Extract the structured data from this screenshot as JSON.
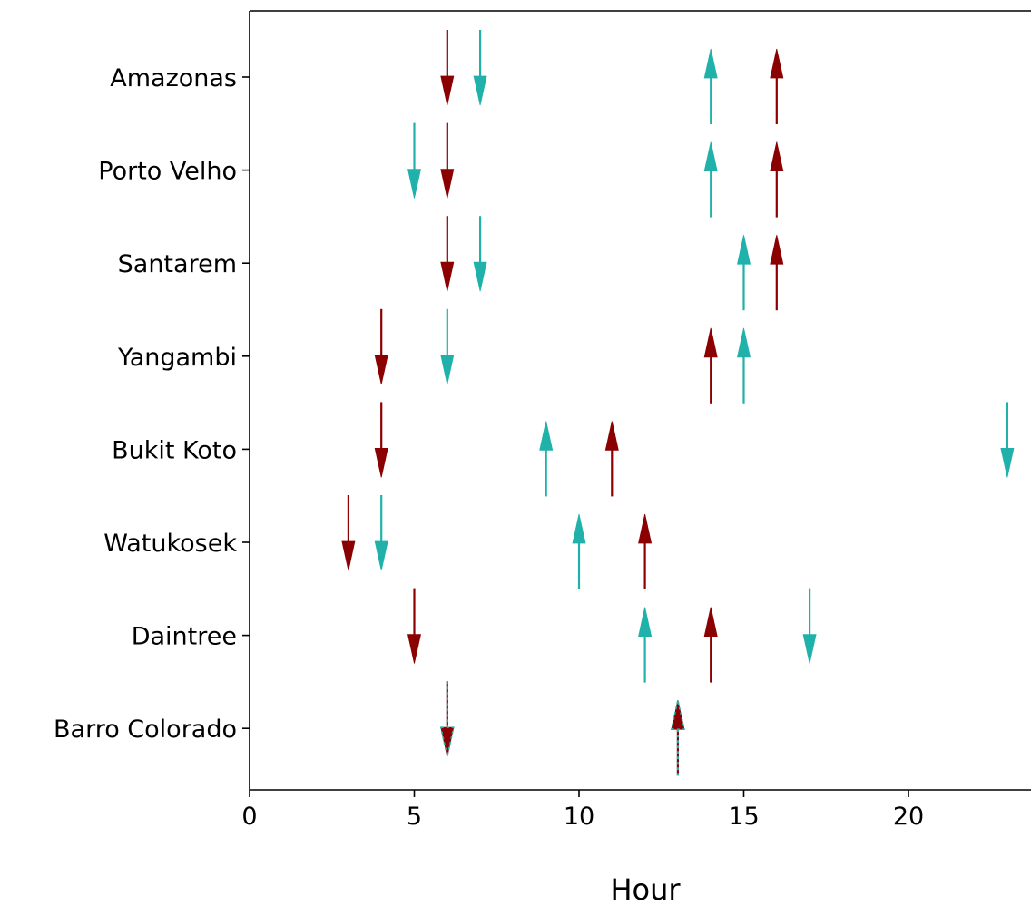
{
  "colors": {
    "red_series": "#8b0000",
    "teal_series": "#20b2aa",
    "axis": "#000000",
    "background": "#ffffff"
  },
  "chart_data": {
    "type": "arrow-plot",
    "title": "",
    "xlabel": "Hour",
    "ylabel": "",
    "xlim": [
      0,
      23.7
    ],
    "x_ticks": [
      0,
      5,
      10,
      15,
      20
    ],
    "grid": false,
    "legend": "none",
    "categories": [
      "Amazonas",
      "Porto Velho",
      "Santarem",
      "Yangambi",
      "Bukit Koto",
      "Watukosek",
      "Daintree",
      "Barro Colorado"
    ],
    "arrows": [
      {
        "site": "Amazonas",
        "hour": 6,
        "direction": "down",
        "series": "red"
      },
      {
        "site": "Amazonas",
        "hour": 7,
        "direction": "down",
        "series": "teal"
      },
      {
        "site": "Amazonas",
        "hour": 14,
        "direction": "up",
        "series": "teal"
      },
      {
        "site": "Amazonas",
        "hour": 16,
        "direction": "up",
        "series": "red"
      },
      {
        "site": "Porto Velho",
        "hour": 5,
        "direction": "down",
        "series": "teal"
      },
      {
        "site": "Porto Velho",
        "hour": 6,
        "direction": "down",
        "series": "red"
      },
      {
        "site": "Porto Velho",
        "hour": 14,
        "direction": "up",
        "series": "teal"
      },
      {
        "site": "Porto Velho",
        "hour": 16,
        "direction": "up",
        "series": "red"
      },
      {
        "site": "Santarem",
        "hour": 6,
        "direction": "down",
        "series": "red"
      },
      {
        "site": "Santarem",
        "hour": 7,
        "direction": "down",
        "series": "teal"
      },
      {
        "site": "Santarem",
        "hour": 15,
        "direction": "up",
        "series": "teal"
      },
      {
        "site": "Santarem",
        "hour": 16,
        "direction": "up",
        "series": "red"
      },
      {
        "site": "Yangambi",
        "hour": 4,
        "direction": "down",
        "series": "red"
      },
      {
        "site": "Yangambi",
        "hour": 6,
        "direction": "down",
        "series": "teal"
      },
      {
        "site": "Yangambi",
        "hour": 14,
        "direction": "up",
        "series": "red"
      },
      {
        "site": "Yangambi",
        "hour": 15,
        "direction": "up",
        "series": "teal"
      },
      {
        "site": "Bukit Koto",
        "hour": 4,
        "direction": "down",
        "series": "red"
      },
      {
        "site": "Bukit Koto",
        "hour": 9,
        "direction": "up",
        "series": "teal"
      },
      {
        "site": "Bukit Koto",
        "hour": 11,
        "direction": "up",
        "series": "red"
      },
      {
        "site": "Bukit Koto",
        "hour": 23,
        "direction": "down",
        "series": "teal"
      },
      {
        "site": "Watukosek",
        "hour": 3,
        "direction": "down",
        "series": "red"
      },
      {
        "site": "Watukosek",
        "hour": 4,
        "direction": "down",
        "series": "teal"
      },
      {
        "site": "Watukosek",
        "hour": 10,
        "direction": "up",
        "series": "teal"
      },
      {
        "site": "Watukosek",
        "hour": 12,
        "direction": "up",
        "series": "red"
      },
      {
        "site": "Daintree",
        "hour": 5,
        "direction": "down",
        "series": "red"
      },
      {
        "site": "Daintree",
        "hour": 12,
        "direction": "up",
        "series": "teal"
      },
      {
        "site": "Daintree",
        "hour": 14,
        "direction": "up",
        "series": "red"
      },
      {
        "site": "Daintree",
        "hour": 17,
        "direction": "down",
        "series": "teal"
      },
      {
        "site": "Barro Colorado",
        "hour": 6,
        "direction": "down",
        "series": "red"
      },
      {
        "site": "Barro Colorado",
        "hour": 6,
        "direction": "down",
        "series": "teal",
        "dashed": true
      },
      {
        "site": "Barro Colorado",
        "hour": 13,
        "direction": "up",
        "series": "red"
      },
      {
        "site": "Barro Colorado",
        "hour": 13,
        "direction": "up",
        "series": "teal",
        "dashed": true
      }
    ]
  }
}
